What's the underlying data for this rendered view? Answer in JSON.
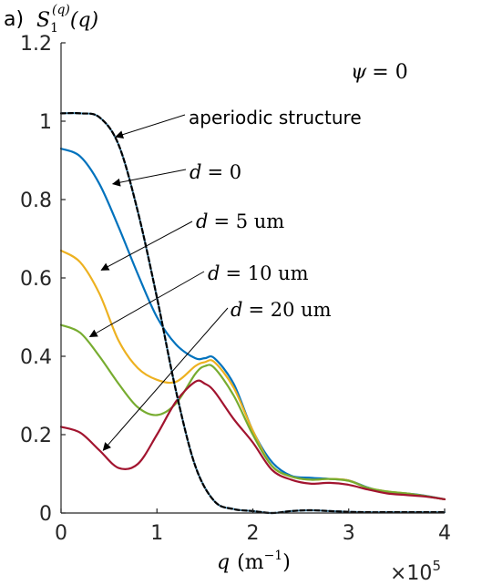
{
  "panel_label": "a)",
  "chart_data": {
    "type": "line",
    "ylabel": {
      "base": "S",
      "sub": "1",
      "sup": "(q)",
      "arg": "(q)"
    },
    "xlabel": {
      "var": "q",
      "unit_base": "m",
      "unit_exp": "−1"
    },
    "xlim": [
      0,
      400000
    ],
    "ylim": [
      0,
      1.2
    ],
    "x_ticks": [
      0,
      100000,
      200000,
      300000,
      400000
    ],
    "x_tick_labels": [
      "0",
      "1",
      "2",
      "3",
      "4"
    ],
    "x_multiplier": {
      "base": "×10",
      "exp": "5"
    },
    "y_ticks": [
      0,
      0.2,
      0.4,
      0.6,
      0.8,
      1.0,
      1.2
    ],
    "y_tick_labels": [
      "0",
      "0.2",
      "0.4",
      "0.6",
      "0.8",
      "1",
      "1.2"
    ],
    "inset_text": {
      "lhs": "ψ",
      "rhs": "= 0"
    },
    "grid": false,
    "legend": "none",
    "series": [
      {
        "color": "#0072BD",
        "x": [
          0,
          20000,
          40000,
          60000,
          80000,
          100000,
          120000,
          140000,
          150000,
          160000,
          180000,
          200000,
          220000,
          240000,
          260000,
          280000,
          300000,
          320000,
          340000,
          360000,
          380000,
          400000
        ],
        "y": [
          0.93,
          0.91,
          0.84,
          0.73,
          0.61,
          0.5,
          0.43,
          0.395,
          0.395,
          0.395,
          0.33,
          0.21,
          0.13,
          0.095,
          0.09,
          0.087,
          0.083,
          0.065,
          0.052,
          0.05,
          0.044,
          0.035
        ]
      },
      {
        "color": "#EDB120",
        "x": [
          0,
          20000,
          40000,
          60000,
          80000,
          100000,
          120000,
          140000,
          150000,
          160000,
          180000,
          200000,
          220000,
          240000,
          260000,
          280000,
          300000,
          320000,
          340000,
          360000,
          380000,
          400000
        ],
        "y": [
          0.67,
          0.64,
          0.56,
          0.44,
          0.37,
          0.34,
          0.335,
          0.375,
          0.385,
          0.385,
          0.32,
          0.21,
          0.12,
          0.093,
          0.085,
          0.087,
          0.083,
          0.064,
          0.055,
          0.05,
          0.043,
          0.035
        ]
      },
      {
        "color": "#77AC30",
        "x": [
          0,
          20000,
          40000,
          60000,
          80000,
          100000,
          120000,
          140000,
          150000,
          160000,
          180000,
          200000,
          220000,
          240000,
          260000,
          280000,
          300000,
          320000,
          340000,
          360000,
          380000,
          400000
        ],
        "y": [
          0.48,
          0.46,
          0.4,
          0.33,
          0.27,
          0.25,
          0.28,
          0.355,
          0.375,
          0.37,
          0.3,
          0.2,
          0.12,
          0.093,
          0.085,
          0.087,
          0.082,
          0.064,
          0.055,
          0.05,
          0.043,
          0.035
        ]
      },
      {
        "color": "#A2142F",
        "x": [
          0,
          20000,
          40000,
          60000,
          80000,
          100000,
          120000,
          140000,
          150000,
          160000,
          180000,
          200000,
          220000,
          240000,
          260000,
          280000,
          300000,
          320000,
          340000,
          360000,
          380000,
          400000
        ],
        "y": [
          0.22,
          0.205,
          0.16,
          0.115,
          0.125,
          0.2,
          0.285,
          0.335,
          0.33,
          0.31,
          0.24,
          0.18,
          0.11,
          0.085,
          0.075,
          0.077,
          0.072,
          0.06,
          0.05,
          0.046,
          0.042,
          0.035
        ]
      },
      {
        "color": "#000000",
        "dashed": true,
        "underlay": "#5fa8d3",
        "x": [
          0,
          20000,
          40000,
          60000,
          80000,
          100000,
          120000,
          140000,
          160000,
          180000,
          200000,
          220000,
          240000,
          260000,
          280000,
          300000,
          320000,
          340000,
          360000,
          380000,
          400000
        ],
        "y": [
          1.02,
          1.02,
          1.01,
          0.94,
          0.77,
          0.55,
          0.31,
          0.12,
          0.03,
          0.01,
          0.005,
          0.0,
          0.005,
          0.007,
          0.005,
          0.003,
          0.002,
          0.002,
          0.002,
          0.002,
          0.002
        ]
      }
    ],
    "annotations": [
      {
        "kind": "sans",
        "text": "aperiodic structure",
        "target_x": 57000,
        "target_y": 0.96
      },
      {
        "kind": "math",
        "lhs": "d",
        "rhs": "= 0",
        "target_x": 54000,
        "target_y": 0.84
      },
      {
        "kind": "math",
        "lhs": "d",
        "rhs": "= 5 um",
        "target_x": 42000,
        "target_y": 0.62
      },
      {
        "kind": "math",
        "lhs": "d",
        "rhs": "= 10 um",
        "target_x": 30000,
        "target_y": 0.45
      },
      {
        "kind": "math",
        "lhs": "d",
        "rhs": "= 20 um",
        "target_x": 44000,
        "target_y": 0.16
      }
    ]
  }
}
